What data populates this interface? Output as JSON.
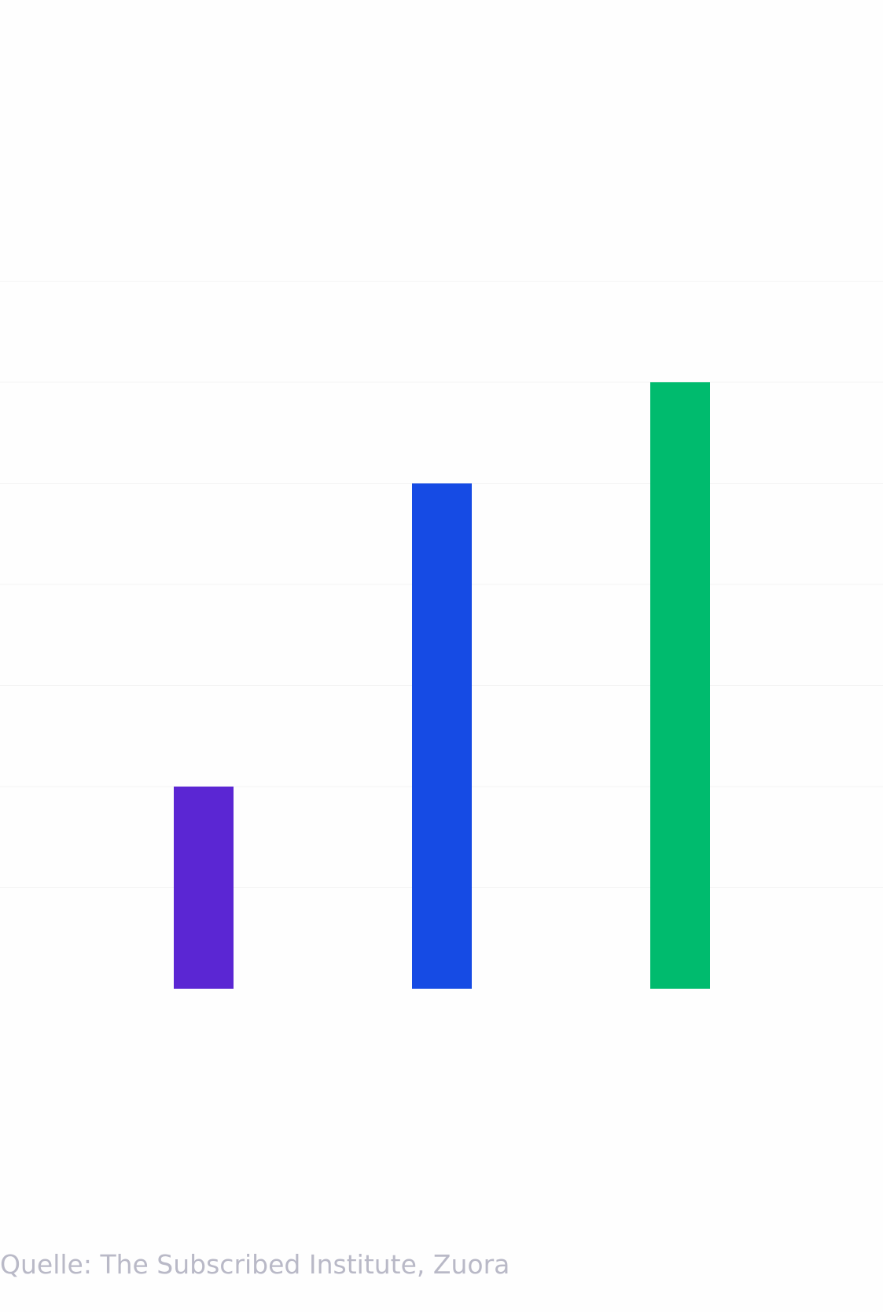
{
  "source": "Quelle: The Subscribed Institute, Zuora",
  "colors": {
    "background": "#fefefe",
    "gridline": "#f4f4f4",
    "source_text": "#b9b9c7"
  },
  "chart_data": {
    "type": "bar",
    "categories": [
      "",
      "",
      ""
    ],
    "values": [
      2,
      5,
      6
    ],
    "bar_colors": [
      "#5b26d3",
      "#164be4",
      "#00bb6e"
    ],
    "title": "",
    "xlabel": "",
    "ylabel": "",
    "ylim": [
      0,
      7
    ],
    "grid": true,
    "legend": "none"
  }
}
